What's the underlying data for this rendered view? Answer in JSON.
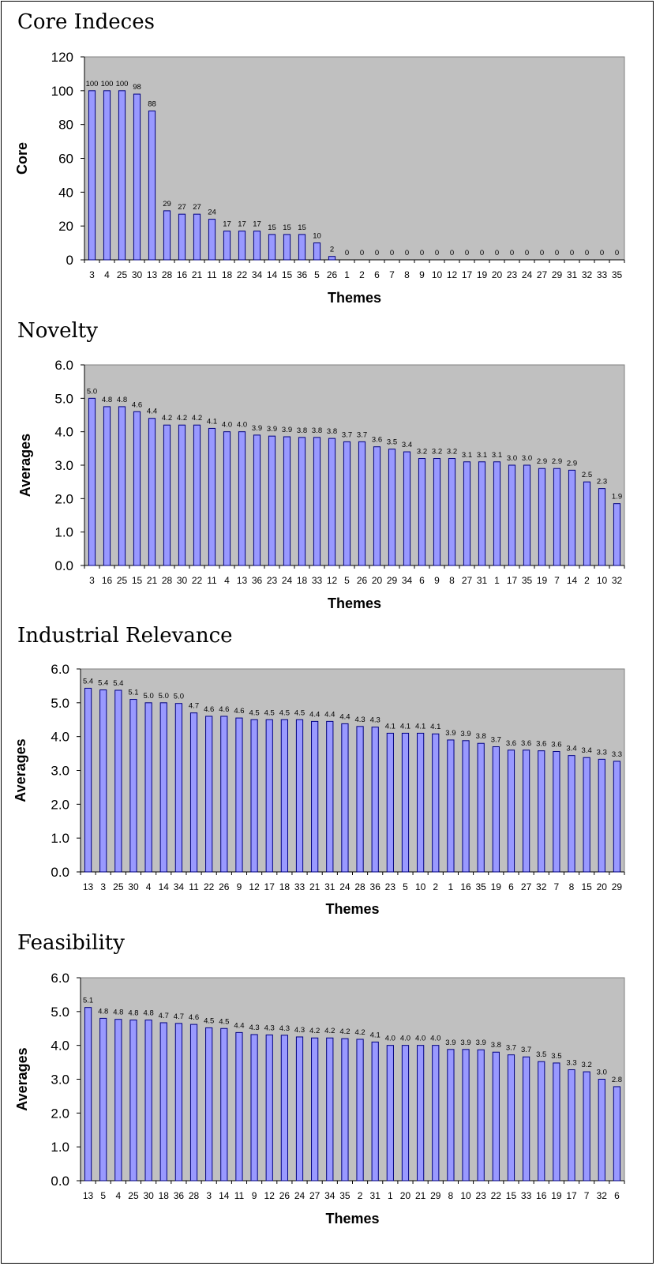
{
  "chart_data": [
    {
      "type": "bar",
      "title": "Core Indeces",
      "xlabel": "Themes",
      "ylabel": "Core",
      "ylim": [
        0,
        120
      ],
      "yticks": [
        "0",
        "20",
        "40",
        "60",
        "80",
        "100",
        "120"
      ],
      "grid": false,
      "categories": [
        "3",
        "4",
        "25",
        "30",
        "13",
        "28",
        "16",
        "21",
        "11",
        "18",
        "22",
        "34",
        "14",
        "15",
        "36",
        "5",
        "26",
        "1",
        "2",
        "6",
        "7",
        "8",
        "9",
        "10",
        "12",
        "17",
        "19",
        "20",
        "23",
        "24",
        "27",
        "29",
        "31",
        "32",
        "33",
        "35"
      ],
      "values": [
        100,
        100,
        100,
        98,
        88,
        29,
        27,
        27,
        24,
        17,
        17,
        17,
        15,
        15,
        15,
        10,
        2,
        0,
        0,
        0,
        0,
        0,
        0,
        0,
        0,
        0,
        0,
        0,
        0,
        0,
        0,
        0,
        0,
        0,
        0,
        0
      ],
      "value_labels": [
        "100",
        "100",
        "100",
        "98",
        "88",
        "29",
        "27",
        "27",
        "24",
        "17",
        "17",
        "17",
        "15",
        "15",
        "15",
        "10",
        "2",
        "0",
        "0",
        "0",
        "0",
        "0",
        "0",
        "0",
        "0",
        "0",
        "0",
        "0",
        "0",
        "0",
        "0",
        "0",
        "0",
        "0",
        "0",
        "0"
      ],
      "colors": {
        "plot_bg": "#c0c0c0",
        "bar_fill": "#9999ff",
        "bar_stroke": "#000080"
      }
    },
    {
      "type": "bar",
      "title": "Novelty",
      "xlabel": "Themes",
      "ylabel": "Averages",
      "ylim": [
        0,
        6
      ],
      "yticks": [
        "0.0",
        "1.0",
        "2.0",
        "3.0",
        "4.0",
        "5.0",
        "6.0"
      ],
      "grid": false,
      "categories": [
        "3",
        "16",
        "25",
        "15",
        "21",
        "28",
        "30",
        "22",
        "11",
        "4",
        "13",
        "36",
        "23",
        "24",
        "18",
        "33",
        "12",
        "5",
        "26",
        "20",
        "29",
        "34",
        "6",
        "9",
        "8",
        "27",
        "31",
        "1",
        "17",
        "35",
        "19",
        "7",
        "14",
        "2",
        "10",
        "32"
      ],
      "values": [
        5.0,
        4.75,
        4.75,
        4.6,
        4.4,
        4.2,
        4.2,
        4.2,
        4.1,
        4.0,
        4.0,
        3.9,
        3.87,
        3.85,
        3.83,
        3.83,
        3.8,
        3.7,
        3.7,
        3.55,
        3.48,
        3.4,
        3.2,
        3.2,
        3.2,
        3.1,
        3.1,
        3.1,
        3.0,
        3.0,
        2.9,
        2.9,
        2.85,
        2.5,
        2.3,
        1.85
      ],
      "value_labels": [
        "5.0",
        "4.8",
        "4.8",
        "4.6",
        "4.4",
        "4.2",
        "4.2",
        "4.2",
        "4.1",
        "4.0",
        "4.0",
        "3.9",
        "3.9",
        "3.9",
        "3.8",
        "3.8",
        "3.8",
        "3.7",
        "3.7",
        "3.6",
        "3.5",
        "3.4",
        "3.2",
        "3.2",
        "3.2",
        "3.1",
        "3.1",
        "3.1",
        "3.0",
        "3.0",
        "2.9",
        "2.9",
        "2.9",
        "2.5",
        "2.3",
        "1.9"
      ],
      "colors": {
        "plot_bg": "#c0c0c0",
        "bar_fill": "#9999ff",
        "bar_stroke": "#000080"
      }
    },
    {
      "type": "bar",
      "title": "Industrial Relevance",
      "xlabel": "Themes",
      "ylabel": "Averages",
      "ylim": [
        0,
        6
      ],
      "yticks": [
        "0.0",
        "1.0",
        "2.0",
        "3.0",
        "4.0",
        "5.0",
        "6.0"
      ],
      "grid": false,
      "categories": [
        "13",
        "3",
        "25",
        "30",
        "4",
        "14",
        "34",
        "11",
        "22",
        "26",
        "9",
        "12",
        "17",
        "18",
        "33",
        "21",
        "31",
        "24",
        "28",
        "36",
        "23",
        "5",
        "10",
        "2",
        "1",
        "16",
        "35",
        "19",
        "6",
        "27",
        "32",
        "7",
        "8",
        "15",
        "20",
        "29"
      ],
      "values": [
        5.43,
        5.38,
        5.37,
        5.1,
        5.0,
        5.0,
        4.98,
        4.7,
        4.6,
        4.6,
        4.55,
        4.5,
        4.5,
        4.5,
        4.5,
        4.45,
        4.45,
        4.38,
        4.3,
        4.28,
        4.1,
        4.1,
        4.1,
        4.08,
        3.9,
        3.88,
        3.8,
        3.7,
        3.6,
        3.6,
        3.58,
        3.56,
        3.44,
        3.38,
        3.33,
        3.27
      ],
      "value_labels": [
        "5.4",
        "5.4",
        "5.4",
        "5.1",
        "5.0",
        "5.0",
        "5.0",
        "4.7",
        "4.6",
        "4.6",
        "4.6",
        "4.5",
        "4.5",
        "4.5",
        "4.5",
        "4.4",
        "4.4",
        "4.4",
        "4.3",
        "4.3",
        "4.1",
        "4.1",
        "4.1",
        "4.1",
        "3.9",
        "3.9",
        "3.8",
        "3.7",
        "3.6",
        "3.6",
        "3.6",
        "3.6",
        "3.4",
        "3.4",
        "3.3",
        "3.3"
      ],
      "colors": {
        "plot_bg": "#c0c0c0",
        "bar_fill": "#9999ff",
        "bar_stroke": "#000080"
      }
    },
    {
      "type": "bar",
      "title": "Feasibility",
      "xlabel": "Themes",
      "ylabel": "Averages",
      "ylim": [
        0,
        6
      ],
      "yticks": [
        "0.0",
        "1.0",
        "2.0",
        "3.0",
        "4.0",
        "5.0",
        "6.0"
      ],
      "grid": false,
      "categories": [
        "13",
        "5",
        "4",
        "25",
        "30",
        "18",
        "36",
        "28",
        "3",
        "14",
        "11",
        "9",
        "12",
        "26",
        "24",
        "27",
        "34",
        "35",
        "2",
        "31",
        "1",
        "20",
        "21",
        "29",
        "8",
        "10",
        "23",
        "22",
        "15",
        "33",
        "16",
        "19",
        "17",
        "7",
        "32",
        "6"
      ],
      "values": [
        5.12,
        4.8,
        4.77,
        4.75,
        4.75,
        4.67,
        4.65,
        4.62,
        4.52,
        4.5,
        4.38,
        4.32,
        4.31,
        4.3,
        4.25,
        4.22,
        4.22,
        4.2,
        4.18,
        4.1,
        4.0,
        4.0,
        4.0,
        4.0,
        3.88,
        3.88,
        3.87,
        3.8,
        3.72,
        3.66,
        3.52,
        3.48,
        3.28,
        3.22,
        3.0,
        2.78
      ],
      "value_labels": [
        "5.1",
        "4.8",
        "4.8",
        "4.8",
        "4.8",
        "4.7",
        "4.7",
        "4.6",
        "4.5",
        "4.5",
        "4.4",
        "4.3",
        "4.3",
        "4.3",
        "4.3",
        "4.2",
        "4.2",
        "4.2",
        "4.2",
        "4.1",
        "4.0",
        "4.0",
        "4.0",
        "4.0",
        "3.9",
        "3.9",
        "3.9",
        "3.8",
        "3.7",
        "3.7",
        "3.5",
        "3.5",
        "3.3",
        "3.2",
        "3.0",
        "2.8"
      ],
      "colors": {
        "plot_bg": "#c0c0c0",
        "bar_fill": "#9999ff",
        "bar_stroke": "#000080"
      }
    }
  ]
}
